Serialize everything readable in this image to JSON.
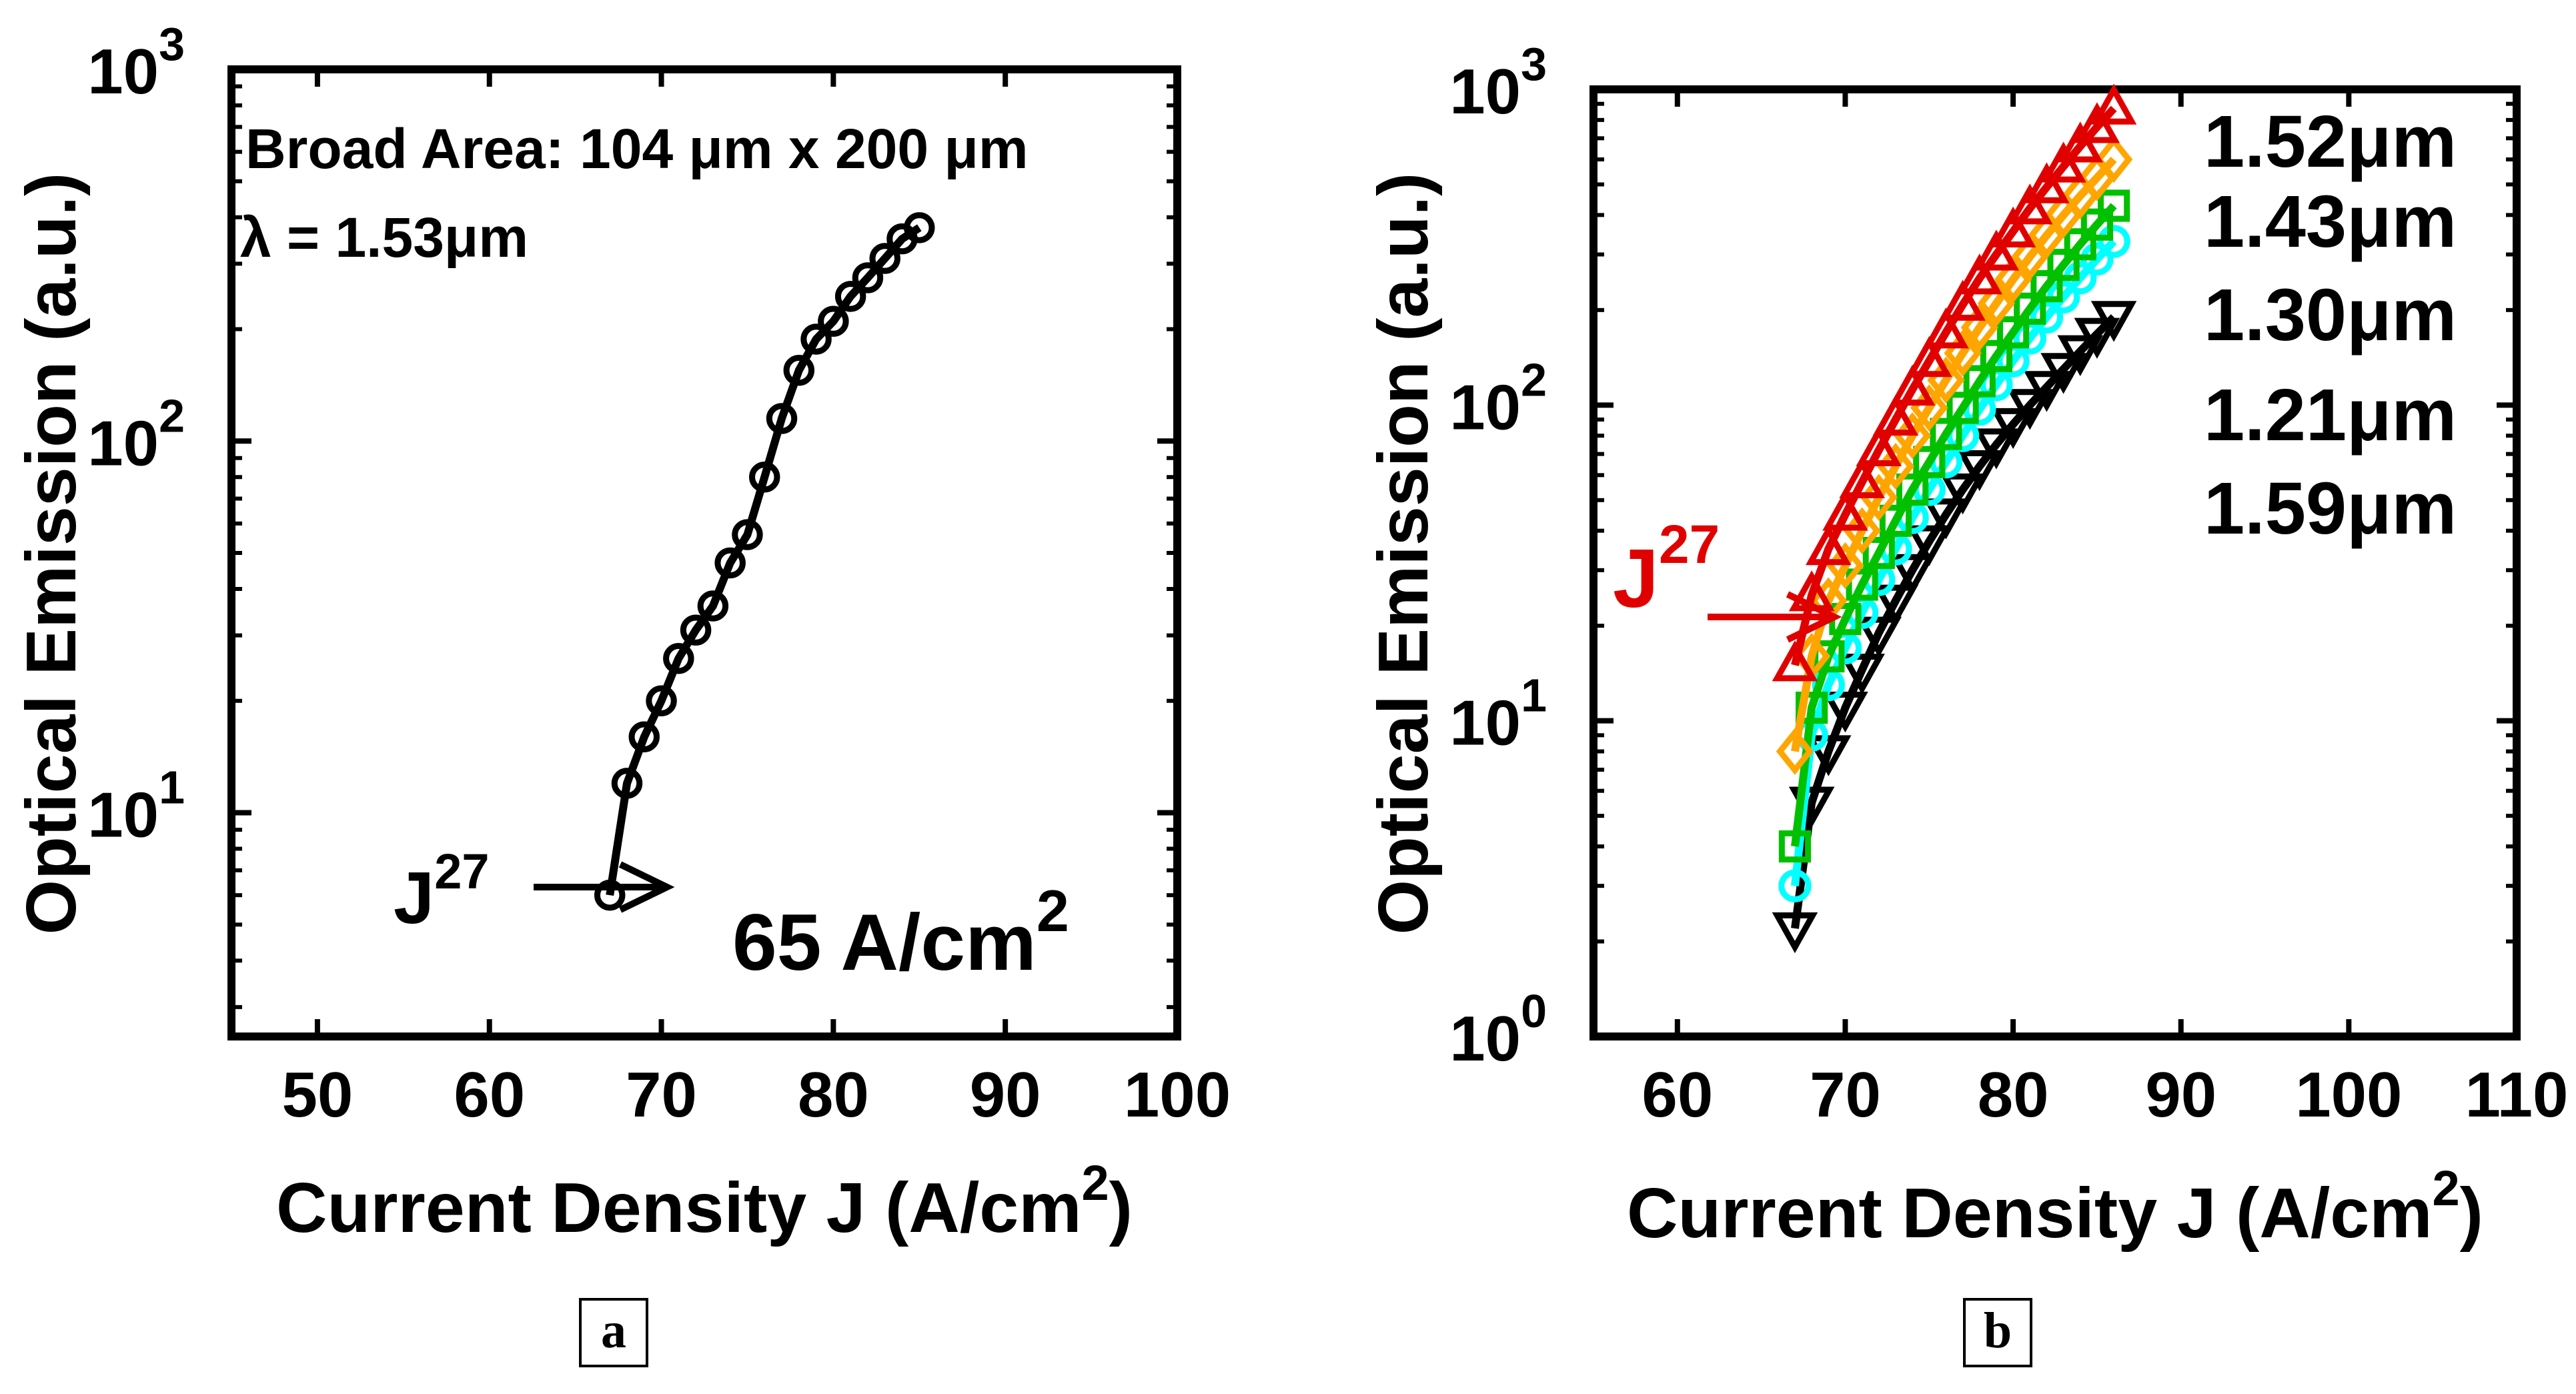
{
  "chart_data": [
    {
      "type": "line",
      "panel": "a",
      "panel_label": "a",
      "xlabel": "Current Density J (A/cm",
      "xlabel_sup": "2",
      "xlabel_end": ")",
      "ylabel": "Optical Emission (a.u.)",
      "yscale": "log",
      "xlim": [
        45,
        100
      ],
      "ylim": [
        2.5,
        1000
      ],
      "x_ticks": [
        50,
        60,
        70,
        80,
        90,
        100
      ],
      "x_tick_labels": [
        "50",
        "60",
        "70",
        "80",
        "90",
        "100"
      ],
      "y_ticks": [
        10,
        100,
        1000
      ],
      "y_tick_base": "10",
      "y_tick_exponents": [
        "1",
        "2",
        "3"
      ],
      "annotations": {
        "line1": "Broad Area: 104 μm x 200 μm",
        "line2": "λ = 1.53μm",
        "j_label": "J",
        "j_sup": "27",
        "threshold": "65 A/cm",
        "threshold_sup": "2"
      },
      "series": [
        {
          "name": "λ = 1.53μm",
          "color": "#000000",
          "marker": "circle",
          "x": [
            67,
            68,
            69,
            70,
            71,
            72,
            73,
            74,
            75,
            76,
            77,
            78,
            79,
            80,
            81,
            82,
            83,
            84,
            85
          ],
          "y": [
            6,
            12,
            16,
            20,
            26,
            31,
            36,
            47,
            56,
            80,
            115,
            155,
            188,
            210,
            245,
            275,
            310,
            350,
            375
          ]
        }
      ]
    },
    {
      "type": "line",
      "panel": "b",
      "panel_label": "b",
      "xlabel": "Current Density J (A/cm",
      "xlabel_sup": "2",
      "xlabel_end": ")",
      "ylabel": "Optical Emission (a.u.)",
      "yscale": "log",
      "xlim": [
        55,
        110
      ],
      "ylim": [
        1,
        1000
      ],
      "x_ticks": [
        60,
        70,
        80,
        90,
        100,
        110
      ],
      "x_tick_labels": [
        "60",
        "70",
        "80",
        "90",
        "100",
        "110"
      ],
      "y_ticks": [
        1,
        10,
        100,
        1000
      ],
      "y_tick_base": "10",
      "y_tick_exponents": [
        "0",
        "1",
        "2",
        "3"
      ],
      "annotations": {
        "j_label": "J",
        "j_sup": "27"
      },
      "series": [
        {
          "name": "1.52μm",
          "color": "#e00000",
          "marker": "triangle-up",
          "x": [
            67,
            68,
            69,
            70,
            71,
            72,
            73,
            74,
            75,
            76,
            77,
            78,
            79,
            80,
            81,
            82,
            83,
            84,
            85,
            86
          ],
          "y": [
            15,
            25,
            35,
            45,
            57,
            72,
            90,
            112,
            138,
            170,
            208,
            252,
            300,
            355,
            420,
            490,
            570,
            660,
            760,
            870
          ]
        },
        {
          "name": "1.43μm",
          "color": "#ffa500",
          "marker": "diamond",
          "x": [
            67,
            68,
            69,
            70,
            71,
            72,
            73,
            74,
            75,
            76,
            77,
            78,
            79,
            80,
            81,
            82,
            83,
            84,
            85,
            86
          ],
          "y": [
            8,
            16,
            24,
            31,
            40,
            51,
            64,
            80,
            98,
            120,
            146,
            176,
            210,
            250,
            295,
            345,
            400,
            460,
            525,
            600
          ]
        },
        {
          "name": "1.30μm",
          "color": "#00c000",
          "marker": "square",
          "x": [
            67,
            68,
            69,
            70,
            71,
            72,
            73,
            74,
            75,
            76,
            77,
            78,
            79,
            80,
            81,
            82,
            83,
            84,
            85,
            86
          ],
          "y": [
            4,
            11,
            16,
            21,
            27,
            34,
            43,
            54,
            66,
            81,
            98,
            119,
            143,
            170,
            202,
            238,
            278,
            323,
            373,
            428
          ]
        },
        {
          "name": "1.21μm",
          "color": "#00ffff",
          "marker": "circle",
          "x": [
            67,
            68,
            69,
            70,
            71,
            72,
            73,
            74,
            75,
            76,
            77,
            78,
            79,
            80,
            81,
            82,
            83,
            84,
            85,
            86
          ],
          "y": [
            3,
            9,
            13,
            17,
            22,
            28,
            35,
            44,
            54,
            66,
            80,
            97,
            116,
            138,
            163,
            190,
            220,
            253,
            290,
            330
          ]
        },
        {
          "name": "1.59μm",
          "color": "#000000",
          "marker": "triangle-down",
          "x": [
            67,
            68,
            69,
            70,
            71,
            72,
            73,
            74,
            75,
            76,
            77,
            78,
            79,
            80,
            81,
            82,
            83,
            84,
            85,
            86
          ],
          "y": [
            2.2,
            5.5,
            8,
            11,
            14.5,
            19,
            24,
            30,
            37,
            45,
            54,
            64,
            75,
            87,
            100,
            114,
            130,
            148,
            168,
            190
          ]
        }
      ]
    }
  ]
}
